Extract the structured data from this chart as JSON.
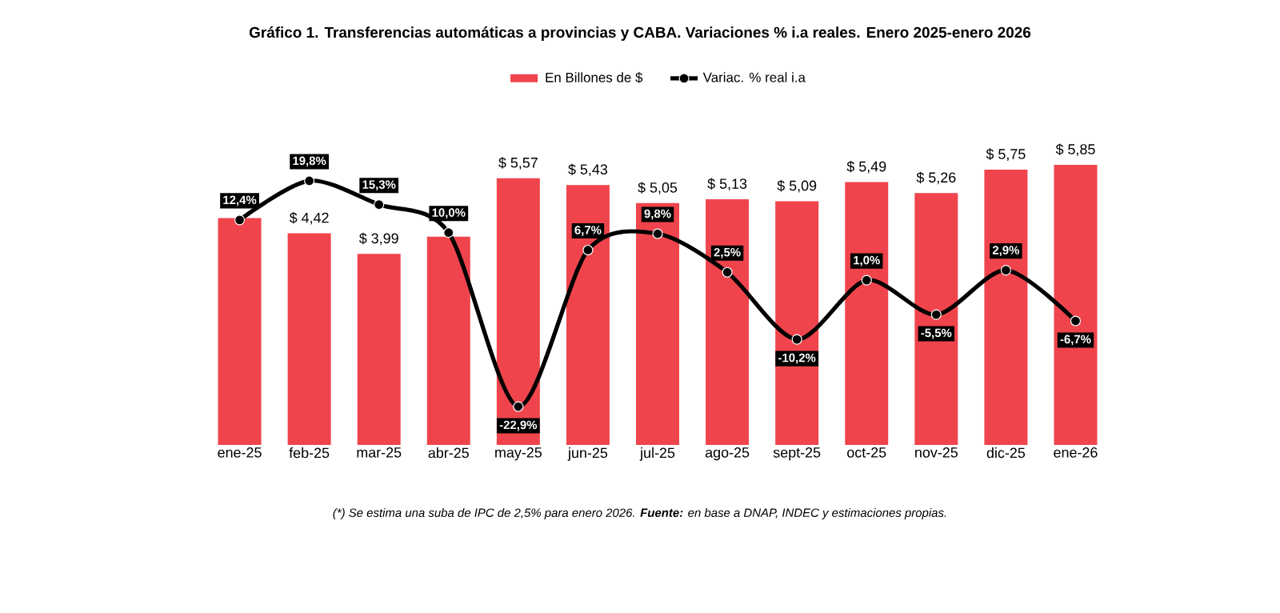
{
  "chart_data": {
    "type": "bar",
    "title": "Gráfico 1. Transferencias automáticas a provincias y CABA. Variaciones % i.a reales. Enero 2025-enero 2026",
    "categories": [
      "ene-25",
      "feb-25",
      "mar-25",
      "abr-25",
      "may-25",
      "jun-25",
      "jul-25",
      "ago-25",
      "sept-25",
      "oct-25",
      "nov-25",
      "dic-25",
      "ene-26"
    ],
    "series": [
      {
        "name": "En Billones de $",
        "type": "bar",
        "color": "#f0444c",
        "values": [
          4.74,
          4.42,
          3.99,
          4.35,
          5.57,
          5.43,
          5.05,
          5.13,
          5.09,
          5.49,
          5.26,
          5.75,
          5.85
        ],
        "value_labels": [
          null,
          "$ 4,42",
          "$ 3,99",
          null,
          "$ 5,57",
          "$ 5,43",
          "$ 5,05",
          "$ 5,13",
          "$ 5,09",
          "$ 5,49",
          "$ 5,26",
          "$ 5,75",
          "$ 5,85"
        ]
      },
      {
        "name": "Variac. % real i.a",
        "type": "line",
        "axis": "y2",
        "color": "#000000",
        "values": [
          12.4,
          19.8,
          15.3,
          10.0,
          -22.9,
          6.7,
          9.8,
          2.5,
          -10.2,
          1.0,
          -5.5,
          2.9,
          -6.7
        ],
        "value_labels": [
          "12,4%",
          "19,8%",
          "15,3%",
          "10,0%",
          "-22,9%",
          "6,7%",
          "9,8%",
          "2,5%",
          "-10,2%",
          "1,0%",
          "-5,5%",
          "2,9%",
          "-6,7%"
        ]
      }
    ],
    "tick_labels": "x",
    "legend": "top",
    "marker": "circle",
    "annotations": [
      "(*) Se estima una suba de IPC de 2,5% para enero 2026. **Fuente:** en base a DNAP, INDEC y estimaciones propias."
    ]
  }
}
